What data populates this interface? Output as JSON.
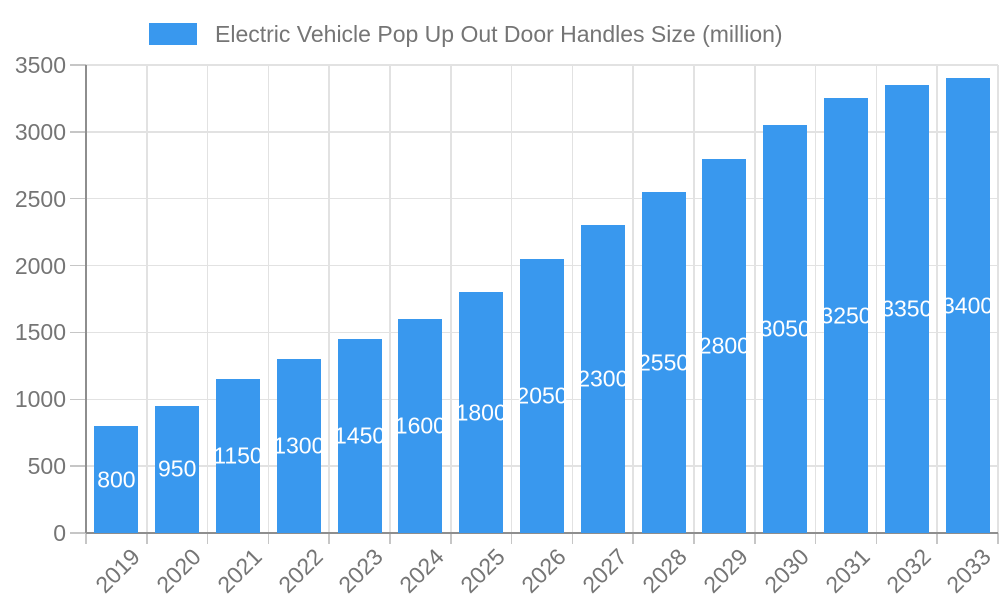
{
  "legend": {
    "label": "Electric Vehicle Pop Up Out Door Handles Size (million)"
  },
  "colors": {
    "bar": "#3998EE",
    "axis_text": "#757575",
    "grid": "#E2E2E2",
    "tick": "#C6C6C6",
    "axis_line": "#8E8E8E",
    "bar_label": "#FFFFFF",
    "background": "#FFFFFF"
  },
  "chart_data": {
    "type": "bar",
    "title": "Electric Vehicle Pop Up Out Door Handles Size (million)",
    "categories": [
      "2019",
      "2020",
      "2021",
      "2022",
      "2023",
      "2024",
      "2025",
      "2026",
      "2027",
      "2028",
      "2029",
      "2030",
      "2031",
      "2032",
      "2033"
    ],
    "values": [
      800,
      950,
      1150,
      1300,
      1450,
      1600,
      1800,
      2050,
      2300,
      2550,
      2800,
      3050,
      3250,
      3350,
      3400
    ],
    "xlabel": "",
    "ylabel": "",
    "ylim": [
      0,
      3500
    ],
    "yticks": [
      0,
      500,
      1000,
      1500,
      2000,
      2500,
      3000,
      3500
    ],
    "grid": true,
    "legend_position": "top",
    "bar_label_position": "inside-center",
    "bar_label_color": "#FFFFFF",
    "x_tick_label_rotation": -45
  }
}
